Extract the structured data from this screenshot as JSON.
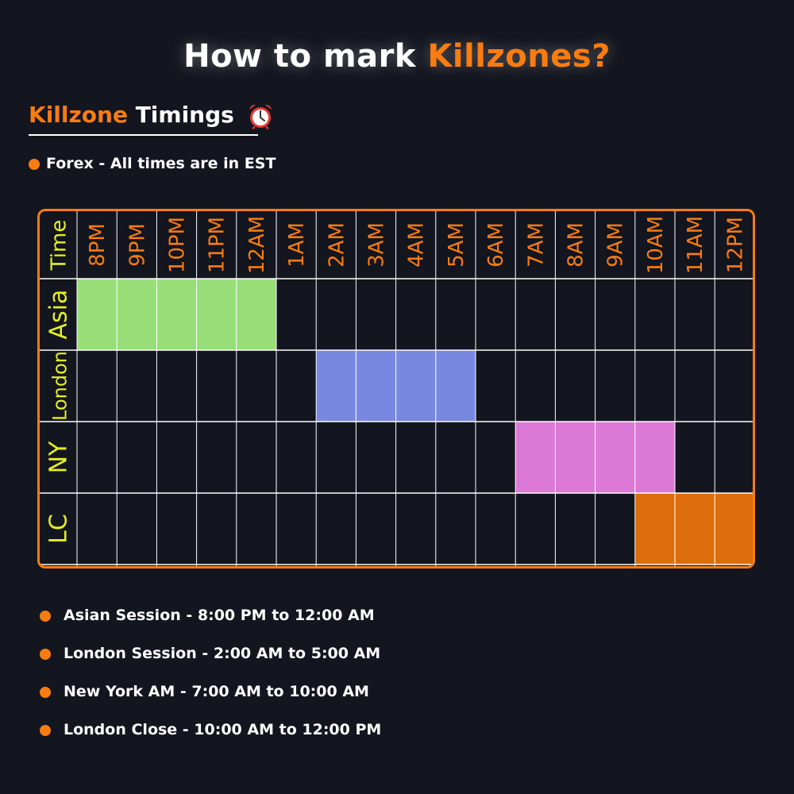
{
  "title": {
    "prefix": "How to mark ",
    "highlight": "Killzones?"
  },
  "subtitle": {
    "highlight": "Killzone",
    "rest": " Timings",
    "icon": "alarm-clock-icon"
  },
  "note": "Forex - All times are in EST",
  "colors": {
    "accent": "#f97c0f",
    "background": "#13151f",
    "header_text": "#f97c0f",
    "row_label_text": "#e6f020",
    "asia": "#97de78",
    "london": "#7888e0",
    "ny": "#dc79d7",
    "lc": "#dc6d0a"
  },
  "grid": {
    "corner_label": "Time",
    "times": [
      "8PM",
      "9PM",
      "10PM",
      "11PM",
      "12AM",
      "1AM",
      "2AM",
      "3AM",
      "4AM",
      "5AM",
      "6AM",
      "7AM",
      "8AM",
      "9AM",
      "10AM",
      "11AM",
      "12PM"
    ],
    "rows": [
      {
        "label": "Asia",
        "start": 0,
        "end": 4,
        "color": "#97de78"
      },
      {
        "label": "London",
        "start": 6,
        "end": 9,
        "color": "#7888e0"
      },
      {
        "label": "NY",
        "start": 11,
        "end": 14,
        "color": "#dc79d7"
      },
      {
        "label": "LC",
        "start": 14,
        "end": 16,
        "color": "#dc6d0a"
      }
    ]
  },
  "sessions": [
    "Asian Session - 8:00 PM to 12:00 AM",
    "London Session - 2:00 AM to 5:00 AM",
    "New York AM - 7:00 AM to 10:00 AM",
    "London Close - 10:00 AM to 12:00 PM"
  ]
}
